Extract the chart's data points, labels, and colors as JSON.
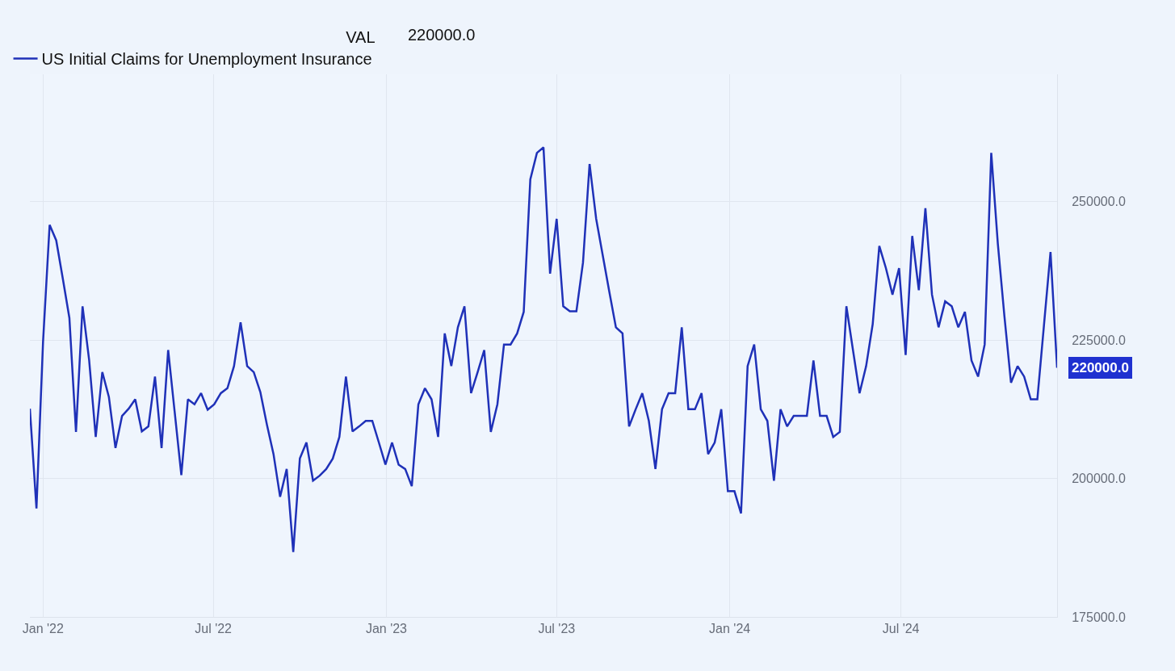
{
  "chart_data": {
    "type": "line",
    "legend_title": "VAL",
    "legend": "top left",
    "grid": true,
    "marker": "none",
    "line_style": "solid",
    "xlim": [
      "2021-12-18",
      "2024-12-14"
    ],
    "xticks": [
      {
        "value": "2022-01-01",
        "label": "Jan '22"
      },
      {
        "value": "2022-07-01",
        "label": "Jul '22"
      },
      {
        "value": "2023-01-01",
        "label": "Jan '23"
      },
      {
        "value": "2023-07-01",
        "label": "Jul '23"
      },
      {
        "value": "2024-01-01",
        "label": "Jan '24"
      },
      {
        "value": "2024-07-01",
        "label": "Jul '24"
      }
    ],
    "ylim": [
      175000,
      273000
    ],
    "yticks": [
      {
        "value": 175000,
        "label": "175000.0"
      },
      {
        "value": 200000,
        "label": "200000.0"
      },
      {
        "value": 225000,
        "label": "225000.0"
      },
      {
        "value": 250000,
        "label": "250000.0"
      }
    ],
    "x": [
      "2021-12-18",
      "2021-12-25",
      "2022-01-01",
      "2022-01-08",
      "2022-01-15",
      "2022-01-22",
      "2022-01-29",
      "2022-02-05",
      "2022-02-12",
      "2022-02-19",
      "2022-02-26",
      "2022-03-05",
      "2022-03-12",
      "2022-03-19",
      "2022-03-26",
      "2022-04-02",
      "2022-04-09",
      "2022-04-16",
      "2022-04-23",
      "2022-04-30",
      "2022-05-07",
      "2022-05-14",
      "2022-05-21",
      "2022-05-28",
      "2022-06-04",
      "2022-06-11",
      "2022-06-18",
      "2022-06-25",
      "2022-07-02",
      "2022-07-09",
      "2022-07-16",
      "2022-07-23",
      "2022-07-30",
      "2022-08-06",
      "2022-08-13",
      "2022-08-20",
      "2022-08-27",
      "2022-09-03",
      "2022-09-10",
      "2022-09-17",
      "2022-09-24",
      "2022-10-01",
      "2022-10-08",
      "2022-10-15",
      "2022-10-22",
      "2022-10-29",
      "2022-11-05",
      "2022-11-12",
      "2022-11-19",
      "2022-11-26",
      "2022-12-03",
      "2022-12-10",
      "2022-12-17",
      "2022-12-24",
      "2022-12-31",
      "2023-01-07",
      "2023-01-14",
      "2023-01-21",
      "2023-01-28",
      "2023-02-04",
      "2023-02-11",
      "2023-02-18",
      "2023-02-25",
      "2023-03-04",
      "2023-03-11",
      "2023-03-18",
      "2023-03-25",
      "2023-04-01",
      "2023-04-08",
      "2023-04-15",
      "2023-04-22",
      "2023-04-29",
      "2023-05-06",
      "2023-05-13",
      "2023-05-20",
      "2023-05-27",
      "2023-06-03",
      "2023-06-10",
      "2023-06-17",
      "2023-06-24",
      "2023-07-01",
      "2023-07-08",
      "2023-07-15",
      "2023-07-22",
      "2023-07-29",
      "2023-08-05",
      "2023-08-12",
      "2023-08-19",
      "2023-08-26",
      "2023-09-02",
      "2023-09-09",
      "2023-09-16",
      "2023-09-23",
      "2023-09-30",
      "2023-10-07",
      "2023-10-14",
      "2023-10-21",
      "2023-10-28",
      "2023-11-04",
      "2023-11-11",
      "2023-11-18",
      "2023-11-25",
      "2023-12-02",
      "2023-12-09",
      "2023-12-16",
      "2023-12-23",
      "2023-12-30",
      "2024-01-06",
      "2024-01-13",
      "2024-01-20",
      "2024-01-27",
      "2024-02-03",
      "2024-02-10",
      "2024-02-17",
      "2024-02-24",
      "2024-03-02",
      "2024-03-09",
      "2024-03-16",
      "2024-03-23",
      "2024-03-30",
      "2024-04-06",
      "2024-04-13",
      "2024-04-20",
      "2024-04-27",
      "2024-05-04",
      "2024-05-11",
      "2024-05-18",
      "2024-05-25",
      "2024-06-01",
      "2024-06-08",
      "2024-06-15",
      "2024-06-22",
      "2024-06-29",
      "2024-07-06",
      "2024-07-13",
      "2024-07-20",
      "2024-07-27",
      "2024-08-03",
      "2024-08-10",
      "2024-08-17",
      "2024-08-24",
      "2024-08-31",
      "2024-09-07",
      "2024-09-14",
      "2024-09-21",
      "2024-09-28",
      "2024-10-05",
      "2024-10-12",
      "2024-10-19",
      "2024-10-26",
      "2024-11-02",
      "2024-11-09",
      "2024-11-16",
      "2024-11-23",
      "2024-11-30",
      "2024-12-07",
      "2024-12-14"
    ],
    "series": [
      {
        "name": "US Initial Claims for Unemployment Insurance",
        "color": "#1f31b8",
        "values": [
          212600,
          194600,
          224700,
          245800,
          243000,
          236100,
          229000,
          208400,
          231100,
          221400,
          207500,
          219200,
          214700,
          205500,
          211300,
          212600,
          214300,
          208500,
          209400,
          218400,
          205500,
          223200,
          211900,
          200600,
          214300,
          213400,
          215400,
          212400,
          213400,
          215400,
          216300,
          220300,
          228200,
          220300,
          219200,
          215600,
          209700,
          204400,
          196700,
          201700,
          186700,
          203600,
          206500,
          199600,
          200500,
          201700,
          203600,
          207500,
          218400,
          208500,
          209400,
          210400,
          210400,
          206500,
          202500,
          206500,
          202500,
          201700,
          198600,
          213400,
          216300,
          214300,
          207500,
          226200,
          220300,
          227300,
          231100,
          215400,
          219200,
          223200,
          208400,
          213400,
          224200,
          224200,
          226200,
          230100,
          254000,
          258800,
          259800,
          237000,
          246900,
          231100,
          230200,
          230200,
          239000,
          256800,
          246900,
          240300,
          233700,
          227300,
          226200,
          209400,
          212500,
          215400,
          210400,
          201700,
          212500,
          215400,
          215400,
          227300,
          212500,
          212500,
          215400,
          204400,
          206500,
          212500,
          197700,
          197700,
          193700,
          220300,
          224200,
          212500,
          210400,
          199600,
          212500,
          209400,
          211300,
          211300,
          211300,
          221300,
          211300,
          211300,
          207500,
          208400,
          231100,
          223200,
          215400,
          220300,
          227900,
          242000,
          238000,
          233200,
          238000,
          222300,
          243800,
          234000,
          248800,
          233200,
          227300,
          232000,
          231100,
          227300,
          230100,
          221300,
          218400,
          224200,
          258800,
          242400,
          229300,
          217300,
          220300,
          218400,
          214300,
          214300,
          227600,
          240900,
          220000
        ]
      }
    ],
    "annotations": [
      {
        "text": "220000.0",
        "x": "2024-12-14",
        "y": 220000
      },
      "220000.0"
    ]
  }
}
